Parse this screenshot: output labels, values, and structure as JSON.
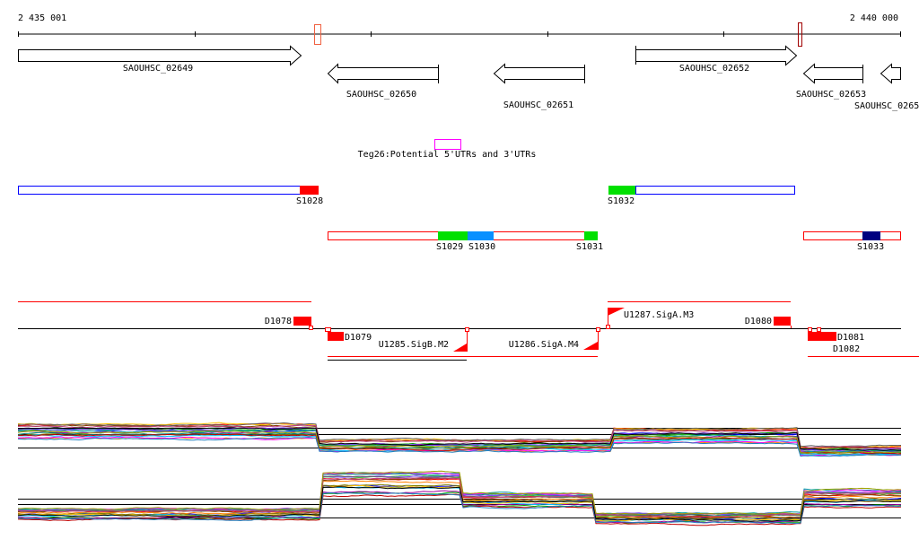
{
  "ruler": {
    "start_label": "2 435 001",
    "end_label": "2 440 000"
  },
  "genes": [
    {
      "label": "SAOUHSC_02649",
      "strand": "+"
    },
    {
      "label": "SAOUHSC_02650",
      "strand": "-"
    },
    {
      "label": "SAOUHSC_02651",
      "strand": "-"
    },
    {
      "label": "SAOUHSC_02652",
      "strand": "+"
    },
    {
      "label": "SAOUHSC_02653",
      "strand": "-"
    },
    {
      "label": "SAOUHSC_0265",
      "strand": "-"
    }
  ],
  "teg": {
    "label": "Teg26:Potential 5'UTRs and 3'UTRs",
    "color": "#ff00ff"
  },
  "segments": {
    "s1028": "S1028",
    "s1029": "S1029",
    "s1030": "S1030",
    "s1031": "S1031",
    "s1032": "S1032",
    "s1033": "S1033"
  },
  "features": {
    "d1078": "D1078",
    "d1079": "D1079",
    "d1080": "D1080",
    "d1081": "D1081",
    "d1082": "D1082",
    "u1285": "U1285.SigB.M2",
    "u1286": "U1286.SigA.M4",
    "u1287": "U1287.SigA.M3"
  },
  "colors": {
    "red": "#ff0000",
    "green": "#00e000",
    "azure": "#0a90ff",
    "navy": "#000080",
    "blue": "#0000ff"
  }
}
